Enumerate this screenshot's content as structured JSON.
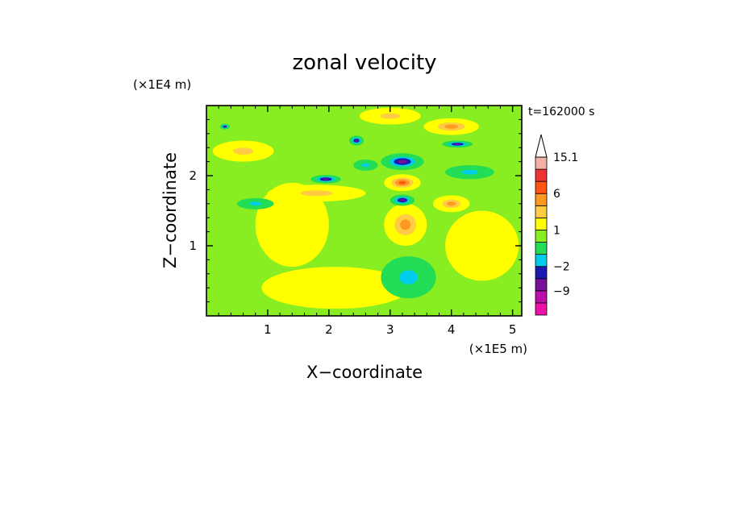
{
  "chart_data": {
    "type": "heatmap",
    "title": "zonal velocity",
    "xlabel": "X−coordinate",
    "ylabel": "Z−coordinate",
    "x_scale_label": "(×1E5 m)",
    "y_scale_label": "(×1E4 m)",
    "time_label": "t=162000 s",
    "xlim": [
      0,
      5.15
    ],
    "ylim": [
      0,
      3.0
    ],
    "x_ticks": [
      "1",
      "2",
      "3",
      "4",
      "5"
    ],
    "y_ticks": [
      "1",
      "2"
    ],
    "legend_placement": "right",
    "colorbar": {
      "bounds": [
        -15,
        -12,
        -9,
        -6,
        -2,
        -1,
        0,
        1,
        2,
        4,
        6,
        9,
        12,
        15.1
      ],
      "colors": [
        "#ee11aa",
        "#bb11aa",
        "#771199",
        "#1a1ab0",
        "#00ccee",
        "#22dd55",
        "#88ee22",
        "#ffff00",
        "#ffcc44",
        "#ff9922",
        "#ff5511",
        "#ee3333",
        "#f5b0a8"
      ],
      "labels": [
        "15.1",
        "6",
        "1",
        "−2",
        "−9"
      ],
      "extend": "max"
    },
    "features": [
      {
        "x": 3.2,
        "z": 2.2,
        "value": -8,
        "rx": 0.35,
        "rz": 0.12
      },
      {
        "x": 3.2,
        "z": 1.65,
        "value": -8,
        "rx": 0.2,
        "rz": 0.08
      },
      {
        "x": 1.95,
        "z": 1.95,
        "value": -8,
        "rx": 0.25,
        "rz": 0.06
      },
      {
        "x": 2.45,
        "z": 2.5,
        "value": -8,
        "rx": 0.12,
        "rz": 0.07
      },
      {
        "x": 4.1,
        "z": 2.45,
        "value": -6,
        "rx": 0.25,
        "rz": 0.05
      },
      {
        "x": 0.3,
        "z": 2.7,
        "value": -6,
        "rx": 0.08,
        "rz": 0.04
      },
      {
        "x": 3.25,
        "z": 1.3,
        "value": 5,
        "rx": 0.35,
        "rz": 0.3
      },
      {
        "x": 3.2,
        "z": 1.9,
        "value": 6,
        "rx": 0.3,
        "rz": 0.12
      },
      {
        "x": 4.0,
        "z": 1.6,
        "value": 5,
        "rx": 0.3,
        "rz": 0.12
      },
      {
        "x": 4.0,
        "z": 2.7,
        "value": 5,
        "rx": 0.45,
        "rz": 0.12
      },
      {
        "x": 3.0,
        "z": 2.85,
        "value": 3,
        "rx": 0.5,
        "rz": 0.12
      },
      {
        "x": 1.8,
        "z": 1.75,
        "value": 3,
        "rx": 0.8,
        "rz": 0.12
      },
      {
        "x": 0.6,
        "z": 2.35,
        "value": 3,
        "rx": 0.5,
        "rz": 0.15
      },
      {
        "x": 3.3,
        "z": 0.55,
        "value": -1.5,
        "rx": 0.45,
        "rz": 0.3
      },
      {
        "x": 1.4,
        "z": 1.3,
        "value": 0.2,
        "rx": 0.6,
        "rz": 0.6
      },
      {
        "x": 0.8,
        "z": 1.6,
        "value": -1.5,
        "rx": 0.3,
        "rz": 0.08
      },
      {
        "x": 2.1,
        "z": 0.4,
        "value": 0.5,
        "rx": 1.2,
        "rz": 0.3
      },
      {
        "x": 4.5,
        "z": 1.0,
        "value": 0.5,
        "rx": 0.6,
        "rz": 0.5
      },
      {
        "x": 2.6,
        "z": 2.15,
        "value": -1.5,
        "rx": 0.2,
        "rz": 0.08
      },
      {
        "x": 4.3,
        "z": 2.05,
        "value": -1.5,
        "rx": 0.4,
        "rz": 0.1
      }
    ]
  }
}
